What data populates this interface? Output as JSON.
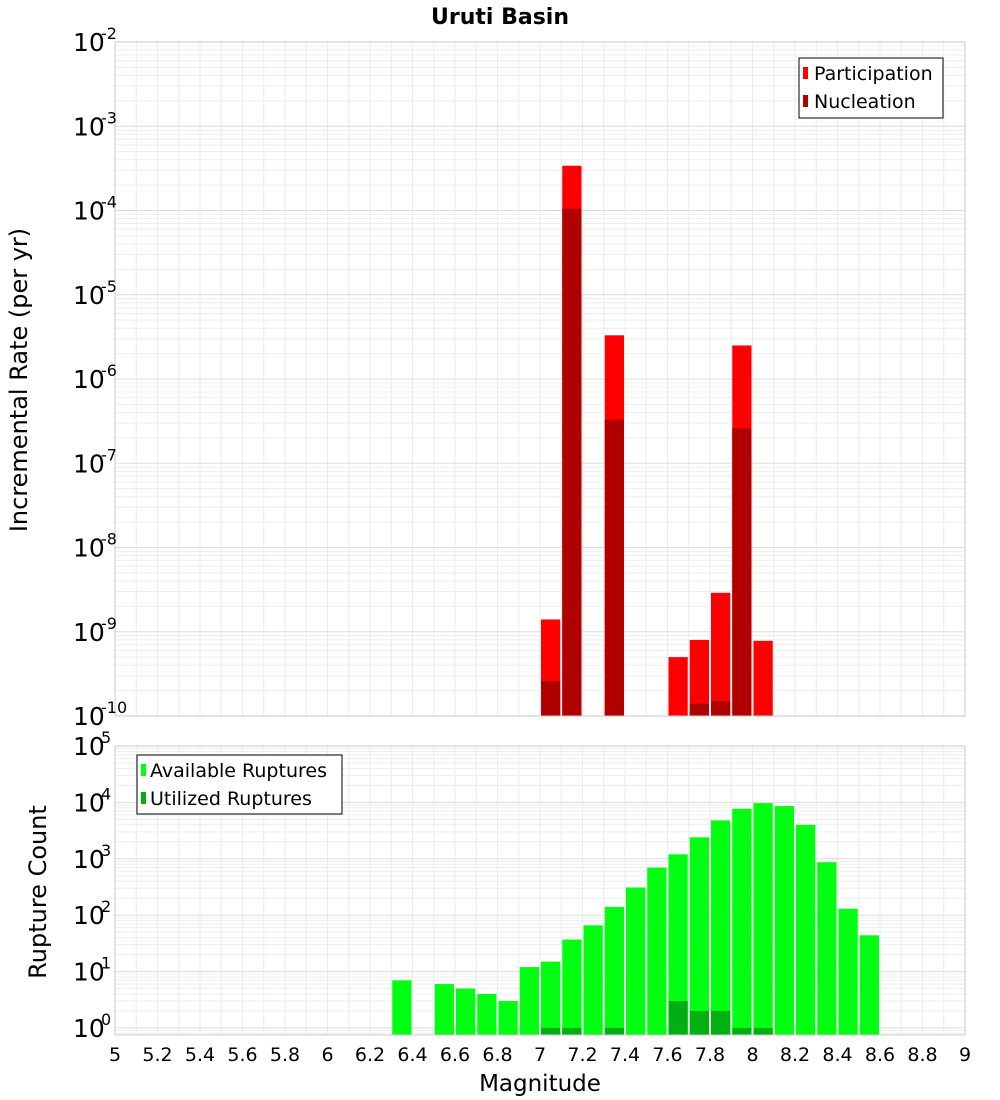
{
  "chart_data": [
    {
      "type": "bar",
      "title": "Uruti Basin",
      "xlabel": "",
      "ylabel": "Incremental Rate (per yr)",
      "yscale": "log",
      "xlim": [
        5,
        9
      ],
      "ylim": [
        1e-10,
        0.01
      ],
      "grid": true,
      "legend_position": "top-right",
      "bar_width": 0.1,
      "series": [
        {
          "name": "Participation",
          "color": "#ff0000",
          "x": [
            7.05,
            7.15,
            7.35,
            7.65,
            7.75,
            7.85,
            7.95,
            8.05
          ],
          "values": [
            1.4e-09,
            0.00034,
            3.3e-06,
            5e-10,
            8e-10,
            2.9e-09,
            2.5e-06,
            7.8e-10
          ]
        },
        {
          "name": "Nucleation",
          "color": "#b00000",
          "x": [
            7.05,
            7.15,
            7.35,
            7.75,
            7.85,
            7.95
          ],
          "values": [
            2.6e-10,
            0.000105,
            3.3e-07,
            1.4e-10,
            1.5e-10,
            2.6e-07
          ]
        }
      ]
    },
    {
      "type": "bar",
      "title": "",
      "xlabel": "Magnitude",
      "ylabel": "Rupture Count",
      "yscale": "log",
      "xlim": [
        5,
        9
      ],
      "ylim": [
        0.75,
        100000.0
      ],
      "grid": true,
      "legend_position": "top-left",
      "bar_width": 0.1,
      "series": [
        {
          "name": "Available Ruptures",
          "color": "#00ff10",
          "x": [
            6.35,
            6.55,
            6.65,
            6.75,
            6.85,
            6.95,
            7.05,
            7.15,
            7.25,
            7.35,
            7.45,
            7.55,
            7.65,
            7.75,
            7.85,
            7.95,
            8.05,
            8.15,
            8.25,
            8.35,
            8.45,
            8.55
          ],
          "values": [
            7,
            6,
            5,
            4,
            3,
            12,
            15,
            37,
            66,
            140,
            310,
            700,
            1200,
            2400,
            4800,
            7700,
            9700,
            8600,
            4000,
            870,
            130,
            44
          ]
        },
        {
          "name": "Utilized Ruptures",
          "color": "#00b010",
          "x": [
            7.05,
            7.15,
            7.35,
            7.65,
            7.75,
            7.85,
            7.95,
            8.05
          ],
          "values": [
            1,
            1,
            1,
            3,
            2,
            2,
            1,
            1
          ]
        }
      ]
    }
  ],
  "x_ticks": [
    "5",
    "5.2",
    "5.4",
    "5.6",
    "5.8",
    "6",
    "6.2",
    "6.4",
    "6.6",
    "6.8",
    "7",
    "7.2",
    "7.4",
    "7.6",
    "7.8",
    "8",
    "8.2",
    "8.4",
    "8.6",
    "8.8",
    "9"
  ],
  "top_y_exponents": [
    "-10",
    "-9",
    "-8",
    "-7",
    "-6",
    "-5",
    "-4",
    "-3",
    "-2"
  ],
  "bottom_y_exponents": [
    "0",
    "1",
    "2",
    "3",
    "4",
    "5"
  ]
}
